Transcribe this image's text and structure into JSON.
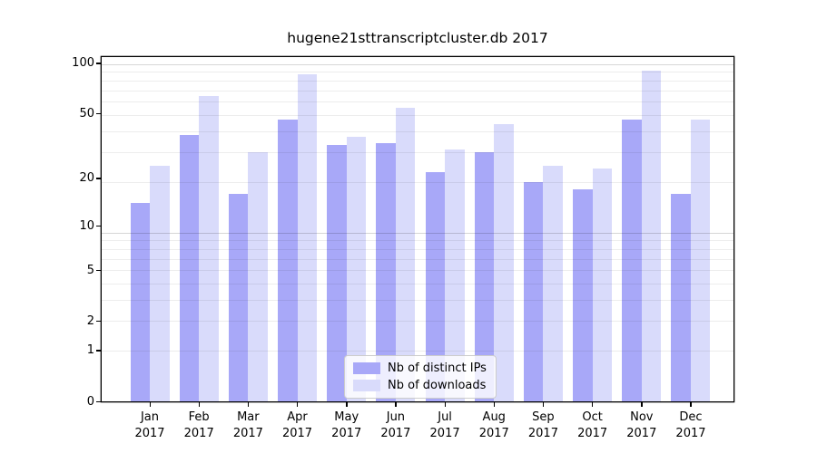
{
  "chart_data": {
    "type": "bar",
    "title": "hugene21sttranscriptcluster.db 2017",
    "categories": [
      "Jan",
      "Feb",
      "Mar",
      "Apr",
      "May",
      "Jun",
      "Jul",
      "Aug",
      "Sep",
      "Oct",
      "Nov",
      "Dec"
    ],
    "x_tick_second_line": "2017",
    "series": [
      {
        "name": "Nb of distinct IPs",
        "color": "#a8a8f8",
        "values": [
          14,
          37,
          16,
          46,
          32,
          33,
          22,
          29,
          19,
          17,
          46,
          16
        ]
      },
      {
        "name": "Nb of downloads",
        "color": "#d9dbfb",
        "values": [
          24,
          64,
          29,
          86,
          36,
          54,
          30,
          43,
          24,
          23,
          91,
          46
        ]
      }
    ],
    "yscale": "log10(value+1)",
    "ylim": [
      0,
      109
    ],
    "yticks": [
      0,
      1,
      2,
      5,
      10,
      20,
      50,
      100
    ],
    "grid": "horizontal",
    "legend_position": "bottom-center"
  },
  "colors": {
    "major_grid": "rgba(0,0,0,0.16)",
    "minor_grid": "rgba(0,0,0,0.07)",
    "axis": "#000000",
    "legend_border": "#cccccc"
  }
}
